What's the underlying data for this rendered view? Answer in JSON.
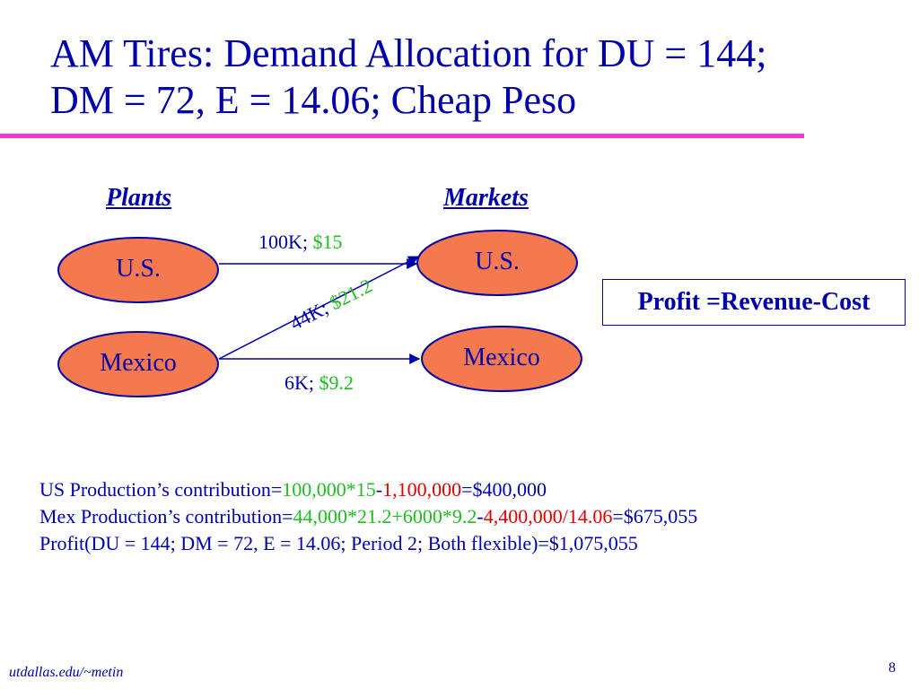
{
  "title": {
    "line1": "AM Tires: Demand Allocation for DU = 144;",
    "line2": "DM = 72, E = 14.06; Cheap Peso"
  },
  "headers": {
    "plants": "Plants",
    "markets": "Markets"
  },
  "plants": [
    {
      "label": "U.S."
    },
    {
      "label": "Mexico"
    }
  ],
  "markets": [
    {
      "label": "U.S."
    },
    {
      "label": "Mexico"
    }
  ],
  "edges": [
    {
      "from": "U.S. plant",
      "to": "U.S. market",
      "qty": "100K; ",
      "price": "$15"
    },
    {
      "from": "Mexico plant",
      "to": "U.S. market",
      "qty": "44K; ",
      "price": "$21.2"
    },
    {
      "from": "Mexico plant",
      "to": "Mexico market",
      "qty": "6K; ",
      "price": "$9.2"
    }
  ],
  "formula": "Profit =Revenue-Cost",
  "calculations": {
    "us": {
      "prefix": "US Production’s contribution=",
      "revenue": "100,000*15",
      "dash": "-",
      "cost": "1,100,000",
      "result": "=$400,000"
    },
    "mex": {
      "prefix": "Mex Production’s contribution=",
      "revenue": "44,000*21.2+6000*9.2",
      "dash": "-",
      "cost": "4,400,000/14.06",
      "result": "=$675,055"
    },
    "total": "Profit(DU = 144; DM = 72, E = 14.06; Period 2; Both flexible)=$1,075,055"
  },
  "footer": {
    "url": "utdallas.edu/~metin",
    "page": "8"
  },
  "colors": {
    "text": "#0000aa",
    "node_fill": "#f4794f",
    "accent_rule": "#ff33cc",
    "price_green": "#22bb22",
    "cost_red": "#dd0000"
  }
}
